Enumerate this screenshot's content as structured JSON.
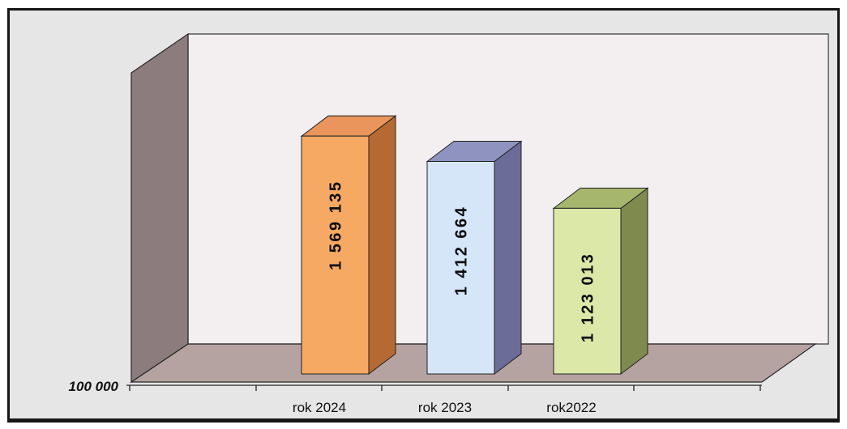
{
  "chart_data": {
    "type": "bar",
    "three_d": true,
    "grid": false,
    "legend": "none",
    "categories": [
      "rok 2024",
      "rok 2023",
      "rok2022"
    ],
    "values": [
      1569135,
      1412664,
      1123013
    ],
    "value_labels": [
      "1 569 135",
      "1 412 664",
      "1 123 013"
    ],
    "y_tick_labels": [
      "100 000"
    ],
    "ymin": 100000,
    "colors": [
      "#f6a962",
      "#d4e6f8",
      "#dbe8a8"
    ],
    "side_colors": [
      "#b56a33",
      "#6b6c98",
      "#7e8a4e"
    ],
    "top_colors": [
      "#e9955b",
      "#8f93c0",
      "#a6b66d"
    ]
  }
}
